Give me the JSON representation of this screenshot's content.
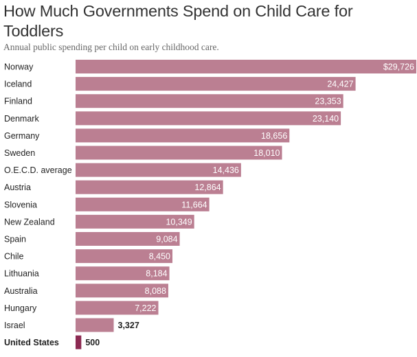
{
  "header": {
    "title": "How Much Governments Spend on Child Care for Toddlers",
    "subtitle": "Annual public spending per child on early childhood care."
  },
  "colors": {
    "bar": "#bb7f92",
    "highlight_bar": "#8c2a52",
    "label_text": "#222222"
  },
  "chart_data": {
    "type": "bar",
    "orientation": "horizontal",
    "title": "How Much Governments Spend on Child Care for Toddlers",
    "subtitle": "Annual public spending per child on early childhood care.",
    "xlabel": "",
    "ylabel": "",
    "xlim": [
      0,
      29726
    ],
    "grid": false,
    "legend": "none",
    "categories": [
      "Norway",
      "Iceland",
      "Finland",
      "Denmark",
      "Germany",
      "Sweden",
      "O.E.C.D. average",
      "Austria",
      "Slovenia",
      "New Zealand",
      "Spain",
      "Chile",
      "Lithuania",
      "Australia",
      "Hungary",
      "Israel",
      "United States"
    ],
    "values": [
      29726,
      24427,
      23353,
      23140,
      18656,
      18010,
      14436,
      12864,
      11664,
      10349,
      9084,
      8450,
      8184,
      8088,
      7222,
      3327,
      500
    ],
    "value_labels": [
      "$29,726",
      "24,427",
      "23,353",
      "23,140",
      "18,656",
      "18,010",
      "14,436",
      "12,864",
      "11,664",
      "10,349",
      "9,084",
      "8,450",
      "8,184",
      "8,088",
      "7,222",
      "3,327",
      "500"
    ],
    "highlight": "United States"
  }
}
